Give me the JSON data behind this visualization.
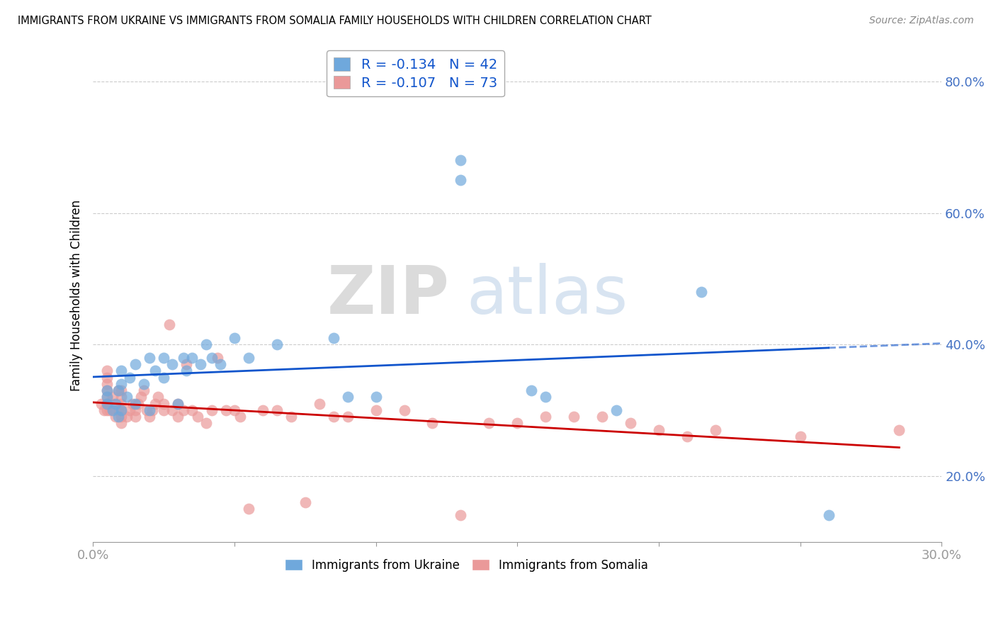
{
  "title": "IMMIGRANTS FROM UKRAINE VS IMMIGRANTS FROM SOMALIA FAMILY HOUSEHOLDS WITH CHILDREN CORRELATION CHART",
  "source": "Source: ZipAtlas.com",
  "ylabel": "Family Households with Children",
  "xlim": [
    0.0,
    0.3
  ],
  "ylim": [
    0.1,
    0.85
  ],
  "yticks": [
    0.2,
    0.4,
    0.6,
    0.8
  ],
  "ytick_labels": [
    "20.0%",
    "40.0%",
    "60.0%",
    "80.0%"
  ],
  "xticks": [
    0.0,
    0.05,
    0.1,
    0.15,
    0.2,
    0.25,
    0.3
  ],
  "xtick_labels": [
    "0.0%",
    "",
    "",
    "",
    "",
    "",
    "30.0%"
  ],
  "ukraine_color": "#6fa8dc",
  "somalia_color": "#ea9999",
  "ukraine_line_color": "#1155cc",
  "somalia_line_color": "#cc0000",
  "ukraine_r": -0.134,
  "ukraine_n": 42,
  "somalia_r": -0.107,
  "somalia_n": 73,
  "watermark_zip": "ZIP",
  "watermark_atlas": "atlas",
  "ukraine_x": [
    0.005,
    0.005,
    0.005,
    0.007,
    0.008,
    0.009,
    0.009,
    0.01,
    0.01,
    0.01,
    0.012,
    0.013,
    0.015,
    0.015,
    0.018,
    0.02,
    0.02,
    0.022,
    0.025,
    0.025,
    0.028,
    0.03,
    0.032,
    0.033,
    0.035,
    0.038,
    0.04,
    0.042,
    0.045,
    0.05,
    0.055,
    0.065,
    0.085,
    0.09,
    0.1,
    0.13,
    0.13,
    0.155,
    0.16,
    0.185,
    0.215,
    0.26
  ],
  "ukraine_y": [
    0.31,
    0.32,
    0.33,
    0.3,
    0.31,
    0.29,
    0.33,
    0.3,
    0.34,
    0.36,
    0.32,
    0.35,
    0.31,
    0.37,
    0.34,
    0.3,
    0.38,
    0.36,
    0.35,
    0.38,
    0.37,
    0.31,
    0.38,
    0.36,
    0.38,
    0.37,
    0.4,
    0.38,
    0.37,
    0.41,
    0.38,
    0.4,
    0.41,
    0.32,
    0.32,
    0.65,
    0.68,
    0.33,
    0.32,
    0.3,
    0.48,
    0.14
  ],
  "somalia_x": [
    0.003,
    0.004,
    0.005,
    0.005,
    0.005,
    0.005,
    0.005,
    0.005,
    0.005,
    0.006,
    0.007,
    0.007,
    0.008,
    0.009,
    0.009,
    0.01,
    0.01,
    0.01,
    0.01,
    0.01,
    0.01,
    0.012,
    0.013,
    0.014,
    0.015,
    0.015,
    0.016,
    0.017,
    0.018,
    0.019,
    0.02,
    0.021,
    0.022,
    0.023,
    0.025,
    0.025,
    0.027,
    0.028,
    0.03,
    0.03,
    0.032,
    0.033,
    0.035,
    0.037,
    0.04,
    0.042,
    0.044,
    0.047,
    0.05,
    0.052,
    0.055,
    0.06,
    0.065,
    0.07,
    0.075,
    0.08,
    0.085,
    0.09,
    0.1,
    0.11,
    0.12,
    0.13,
    0.14,
    0.15,
    0.16,
    0.17,
    0.18,
    0.19,
    0.2,
    0.21,
    0.22,
    0.25,
    0.285
  ],
  "somalia_y": [
    0.31,
    0.3,
    0.3,
    0.31,
    0.32,
    0.33,
    0.34,
    0.35,
    0.36,
    0.3,
    0.31,
    0.32,
    0.29,
    0.3,
    0.33,
    0.28,
    0.29,
    0.3,
    0.31,
    0.32,
    0.33,
    0.29,
    0.3,
    0.31,
    0.29,
    0.3,
    0.31,
    0.32,
    0.33,
    0.3,
    0.29,
    0.3,
    0.31,
    0.32,
    0.3,
    0.31,
    0.43,
    0.3,
    0.29,
    0.31,
    0.3,
    0.37,
    0.3,
    0.29,
    0.28,
    0.3,
    0.38,
    0.3,
    0.3,
    0.29,
    0.15,
    0.3,
    0.3,
    0.29,
    0.16,
    0.31,
    0.29,
    0.29,
    0.3,
    0.3,
    0.28,
    0.14,
    0.28,
    0.28,
    0.29,
    0.29,
    0.29,
    0.28,
    0.27,
    0.26,
    0.27,
    0.26,
    0.27
  ]
}
